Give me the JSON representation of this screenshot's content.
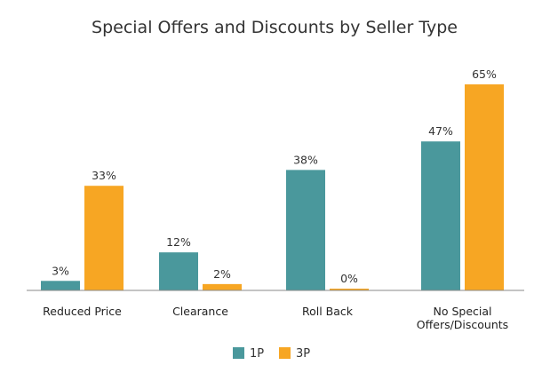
{
  "colors": {
    "series_1p": "#4A989C",
    "series_3p": "#F7A623",
    "axis": "#8a8a8a",
    "text": "#333333"
  },
  "chart_data": {
    "type": "bar",
    "title": "Special Offers and Discounts by Seller Type",
    "xlabel": "",
    "ylabel": "",
    "ylim": [
      0,
      65
    ],
    "grid": false,
    "legend_position": "bottom",
    "categories": [
      [
        "Reduced Price"
      ],
      [
        "Clearance"
      ],
      [
        "Roll Back"
      ],
      [
        "No Special",
        "Offers/Discounts"
      ]
    ],
    "series": [
      {
        "name": "1P",
        "values": [
          3,
          12,
          38,
          47
        ],
        "labels": [
          "3%",
          "12%",
          "38%",
          "47%"
        ]
      },
      {
        "name": "3P",
        "values": [
          33,
          2,
          0,
          65
        ],
        "labels": [
          "33%",
          "2%",
          "0%",
          "65%"
        ]
      }
    ]
  }
}
